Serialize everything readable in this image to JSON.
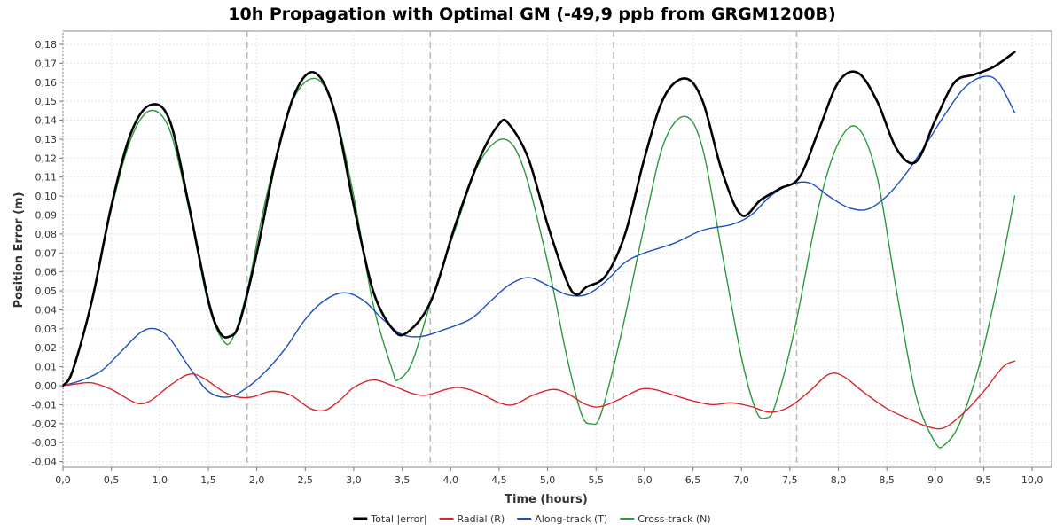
{
  "chart_data": {
    "type": "line",
    "title": "10h Propagation with Optimal GM (-49,9 ppb from GRGM1200B)",
    "xlabel": "Time (hours)",
    "ylabel": "Position Error (m)",
    "xlim": [
      0,
      10.2
    ],
    "ylim": [
      -0.043,
      0.187
    ],
    "x_ticks": [
      0,
      0.5,
      1,
      1.5,
      2,
      2.5,
      3,
      3.5,
      4,
      4.5,
      5,
      5.5,
      6,
      6.5,
      7,
      7.5,
      8,
      8.5,
      9,
      9.5,
      10
    ],
    "x_tick_labels": [
      "0,0",
      "0,5",
      "1,0",
      "1,5",
      "2,0",
      "2,5",
      "3,0",
      "3,5",
      "4,0",
      "4,5",
      "5,0",
      "5,5",
      "6,0",
      "6,5",
      "7,0",
      "7,5",
      "8,0",
      "8,5",
      "9,0",
      "9,5",
      "10,0"
    ],
    "y_ticks": [
      -0.04,
      -0.03,
      -0.02,
      -0.01,
      0,
      0.01,
      0.02,
      0.03,
      0.04,
      0.05,
      0.06,
      0.07,
      0.08,
      0.09,
      0.1,
      0.11,
      0.12,
      0.13,
      0.14,
      0.15,
      0.16,
      0.17,
      0.18
    ],
    "y_tick_labels": [
      "-0,04",
      "-0,03",
      "-0,02",
      "-0,01",
      "0,00",
      "0,01",
      "0,02",
      "0,03",
      "0,04",
      "0,05",
      "0,06",
      "0,07",
      "0,08",
      "0,09",
      "0,10",
      "0,11",
      "0,12",
      "0,13",
      "0,14",
      "0,15",
      "0,16",
      "0,17",
      "0,18"
    ],
    "vertical_markers": [
      1.9,
      3.79,
      5.68,
      7.57,
      9.46
    ],
    "grid": true,
    "legend_position": "bottom",
    "series": [
      {
        "name": "Total |error|",
        "color": "#000000",
        "points": [
          [
            0,
            0
          ],
          [
            0.1,
            0.008
          ],
          [
            0.3,
            0.045
          ],
          [
            0.5,
            0.095
          ],
          [
            0.7,
            0.133
          ],
          [
            0.9,
            0.148
          ],
          [
            1.1,
            0.14
          ],
          [
            1.3,
            0.095
          ],
          [
            1.5,
            0.045
          ],
          [
            1.62,
            0.028
          ],
          [
            1.72,
            0.026
          ],
          [
            1.82,
            0.033
          ],
          [
            2,
            0.07
          ],
          [
            2.2,
            0.12
          ],
          [
            2.4,
            0.155
          ],
          [
            2.6,
            0.165
          ],
          [
            2.8,
            0.145
          ],
          [
            3,
            0.095
          ],
          [
            3.2,
            0.05
          ],
          [
            3.4,
            0.03
          ],
          [
            3.55,
            0.028
          ],
          [
            3.8,
            0.045
          ],
          [
            4.05,
            0.085
          ],
          [
            4.3,
            0.12
          ],
          [
            4.5,
            0.138
          ],
          [
            4.6,
            0.138
          ],
          [
            4.8,
            0.12
          ],
          [
            5.0,
            0.085
          ],
          [
            5.2,
            0.055
          ],
          [
            5.3,
            0.048
          ],
          [
            5.4,
            0.052
          ],
          [
            5.6,
            0.058
          ],
          [
            5.8,
            0.08
          ],
          [
            6,
            0.12
          ],
          [
            6.2,
            0.152
          ],
          [
            6.42,
            0.162
          ],
          [
            6.6,
            0.15
          ],
          [
            6.8,
            0.113
          ],
          [
            7,
            0.09
          ],
          [
            7.2,
            0.098
          ],
          [
            7.4,
            0.104
          ],
          [
            7.6,
            0.11
          ],
          [
            7.8,
            0.135
          ],
          [
            8,
            0.16
          ],
          [
            8.2,
            0.165
          ],
          [
            8.4,
            0.15
          ],
          [
            8.6,
            0.125
          ],
          [
            8.8,
            0.118
          ],
          [
            9,
            0.14
          ],
          [
            9.2,
            0.16
          ],
          [
            9.4,
            0.164
          ],
          [
            9.6,
            0.168
          ],
          [
            9.82,
            0.176
          ]
        ]
      },
      {
        "name": "Radial (R)",
        "color": "#d9262b",
        "points": [
          [
            0,
            0
          ],
          [
            0.15,
            0.001
          ],
          [
            0.3,
            0.0015
          ],
          [
            0.5,
            -0.002
          ],
          [
            0.75,
            -0.009
          ],
          [
            0.9,
            -0.008
          ],
          [
            1.1,
            0
          ],
          [
            1.3,
            0.006
          ],
          [
            1.45,
            0.004
          ],
          [
            1.65,
            -0.003
          ],
          [
            1.8,
            -0.006
          ],
          [
            1.95,
            -0.006
          ],
          [
            2.15,
            -0.003
          ],
          [
            2.35,
            -0.005
          ],
          [
            2.55,
            -0.012
          ],
          [
            2.7,
            -0.013
          ],
          [
            2.85,
            -0.008
          ],
          [
            3,
            -0.001
          ],
          [
            3.2,
            0.003
          ],
          [
            3.4,
            0.0
          ],
          [
            3.6,
            -0.004
          ],
          [
            3.75,
            -0.005
          ],
          [
            3.95,
            -0.002
          ],
          [
            4.1,
            -0.001
          ],
          [
            4.3,
            -0.004
          ],
          [
            4.5,
            -0.009
          ],
          [
            4.65,
            -0.01
          ],
          [
            4.85,
            -0.005
          ],
          [
            5.05,
            -0.002
          ],
          [
            5.2,
            -0.004
          ],
          [
            5.4,
            -0.01
          ],
          [
            5.55,
            -0.011
          ],
          [
            5.75,
            -0.007
          ],
          [
            5.95,
            -0.002
          ],
          [
            6.1,
            -0.002
          ],
          [
            6.3,
            -0.005
          ],
          [
            6.5,
            -0.008
          ],
          [
            6.7,
            -0.01
          ],
          [
            6.9,
            -0.009
          ],
          [
            7.1,
            -0.011
          ],
          [
            7.3,
            -0.014
          ],
          [
            7.5,
            -0.011
          ],
          [
            7.7,
            -0.003
          ],
          [
            7.9,
            0.006
          ],
          [
            8.05,
            0.005
          ],
          [
            8.25,
            -0.003
          ],
          [
            8.5,
            -0.012
          ],
          [
            8.75,
            -0.018
          ],
          [
            8.95,
            -0.022
          ],
          [
            9.1,
            -0.022
          ],
          [
            9.3,
            -0.014
          ],
          [
            9.5,
            -0.003
          ],
          [
            9.7,
            0.01
          ],
          [
            9.82,
            0.013
          ]
        ]
      },
      {
        "name": "Along-track (T)",
        "color": "#1a4fbf",
        "points": [
          [
            0,
            0
          ],
          [
            0.2,
            0.003
          ],
          [
            0.4,
            0.008
          ],
          [
            0.6,
            0.018
          ],
          [
            0.8,
            0.028
          ],
          [
            0.95,
            0.03
          ],
          [
            1.1,
            0.025
          ],
          [
            1.3,
            0.01
          ],
          [
            1.5,
            -0.003
          ],
          [
            1.7,
            -0.006
          ],
          [
            1.9,
            -0.001
          ],
          [
            2.1,
            0.008
          ],
          [
            2.3,
            0.02
          ],
          [
            2.5,
            0.035
          ],
          [
            2.7,
            0.045
          ],
          [
            2.9,
            0.049
          ],
          [
            3.1,
            0.045
          ],
          [
            3.3,
            0.035
          ],
          [
            3.5,
            0.027
          ],
          [
            3.7,
            0.026
          ],
          [
            3.9,
            0.029
          ],
          [
            4.2,
            0.035
          ],
          [
            4.4,
            0.044
          ],
          [
            4.6,
            0.053
          ],
          [
            4.8,
            0.057
          ],
          [
            5,
            0.053
          ],
          [
            5.2,
            0.048
          ],
          [
            5.4,
            0.048
          ],
          [
            5.6,
            0.055
          ],
          [
            5.8,
            0.065
          ],
          [
            6,
            0.07
          ],
          [
            6.3,
            0.075
          ],
          [
            6.6,
            0.082
          ],
          [
            6.9,
            0.085
          ],
          [
            7.1,
            0.09
          ],
          [
            7.3,
            0.1
          ],
          [
            7.5,
            0.106
          ],
          [
            7.7,
            0.107
          ],
          [
            7.9,
            0.1
          ],
          [
            8.1,
            0.094
          ],
          [
            8.3,
            0.093
          ],
          [
            8.5,
            0.1
          ],
          [
            8.7,
            0.112
          ],
          [
            8.9,
            0.127
          ],
          [
            9.1,
            0.143
          ],
          [
            9.3,
            0.157
          ],
          [
            9.5,
            0.163
          ],
          [
            9.65,
            0.16
          ],
          [
            9.82,
            0.144
          ]
        ]
      },
      {
        "name": "Cross-track (N)",
        "color": "#2a9a3b",
        "points": [
          [
            0,
            0
          ],
          [
            0.1,
            0.007
          ],
          [
            0.3,
            0.045
          ],
          [
            0.5,
            0.093
          ],
          [
            0.7,
            0.13
          ],
          [
            0.9,
            0.145
          ],
          [
            1.1,
            0.135
          ],
          [
            1.3,
            0.093
          ],
          [
            1.5,
            0.043
          ],
          [
            1.65,
            0.024
          ],
          [
            1.75,
            0.025
          ],
          [
            1.9,
            0.05
          ],
          [
            2.1,
            0.1
          ],
          [
            2.35,
            0.148
          ],
          [
            2.6,
            0.162
          ],
          [
            2.8,
            0.145
          ],
          [
            3,
            0.1
          ],
          [
            3.2,
            0.043
          ],
          [
            3.4,
            0.008
          ],
          [
            3.45,
            0.003
          ],
          [
            3.6,
            0.012
          ],
          [
            3.8,
            0.045
          ],
          [
            4.05,
            0.083
          ],
          [
            4.3,
            0.118
          ],
          [
            4.55,
            0.13
          ],
          [
            4.75,
            0.115
          ],
          [
            5,
            0.065
          ],
          [
            5.2,
            0.015
          ],
          [
            5.35,
            -0.015
          ],
          [
            5.45,
            -0.02
          ],
          [
            5.55,
            -0.015
          ],
          [
            5.75,
            0.025
          ],
          [
            6,
            0.085
          ],
          [
            6.2,
            0.128
          ],
          [
            6.42,
            0.142
          ],
          [
            6.6,
            0.125
          ],
          [
            6.8,
            0.07
          ],
          [
            7,
            0.015
          ],
          [
            7.15,
            -0.013
          ],
          [
            7.25,
            -0.017
          ],
          [
            7.35,
            -0.01
          ],
          [
            7.55,
            0.03
          ],
          [
            7.8,
            0.095
          ],
          [
            8,
            0.128
          ],
          [
            8.2,
            0.136
          ],
          [
            8.4,
            0.11
          ],
          [
            8.6,
            0.05
          ],
          [
            8.8,
            -0.005
          ],
          [
            9,
            -0.03
          ],
          [
            9.1,
            -0.031
          ],
          [
            9.25,
            -0.02
          ],
          [
            9.45,
            0.01
          ],
          [
            9.65,
            0.055
          ],
          [
            9.82,
            0.1
          ]
        ]
      }
    ]
  }
}
